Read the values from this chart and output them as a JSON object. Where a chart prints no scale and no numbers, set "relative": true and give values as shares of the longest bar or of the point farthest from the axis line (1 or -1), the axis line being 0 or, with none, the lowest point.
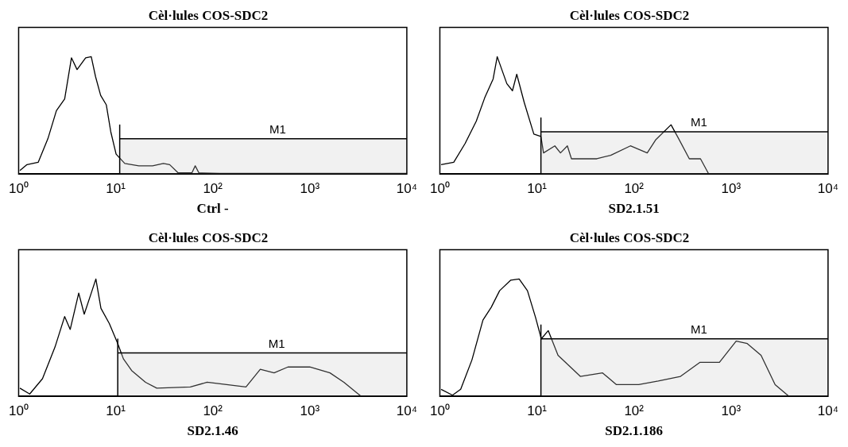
{
  "chart_data": [
    {
      "type": "line",
      "title": "Cèl·lules COS-SDC2",
      "xlabel": "Ctrl -",
      "ref_lines": [
        {
          "axis": "x",
          "value": 11
        },
        {
          "axis": "y",
          "value": 0.3
        }
      ],
      "log": "x",
      "relative": true,
      "marker": "none",
      "line_style": "solid",
      "xlim": [
        1,
        10000
      ],
      "xticks": [
        {
          "value": 1,
          "label": "10⁰"
        },
        {
          "value": 10,
          "label": "10¹"
        },
        {
          "value": 100,
          "label": "10²"
        },
        {
          "value": 1000,
          "label": "10³"
        },
        {
          "value": 10000,
          "label": "10⁴"
        }
      ],
      "bands": [
        {
          "axis": "x",
          "from": 11,
          "to": 10000,
          "label": "M1"
        }
      ],
      "x": [
        1.03,
        1.22,
        1.59,
        2.0,
        2.45,
        2.98,
        3.5,
        4.0,
        4.9,
        5.6,
        6.2,
        7.0,
        8.0,
        8.9,
        10.1,
        12.4,
        17.3,
        24,
        31,
        36,
        44,
        61,
        66,
        72,
        118,
        10000
      ],
      "series": [
        {
          "color": "#000000",
          "values": [
            0.03,
            0.08,
            0.1,
            0.3,
            0.54,
            0.64,
            0.99,
            0.89,
            0.99,
            1.0,
            0.83,
            0.67,
            0.59,
            0.36,
            0.17,
            0.09,
            0.07,
            0.07,
            0.09,
            0.08,
            0.01,
            0.01,
            0.07,
            0.01,
            0.005,
            0.005
          ]
        }
      ]
    },
    {
      "type": "line",
      "title": "Cèl·lules COS-SDC2",
      "xlabel": "SD2.1.51",
      "ref_lines": [
        {
          "axis": "x",
          "value": 11
        },
        {
          "axis": "y",
          "value": 0.36
        }
      ],
      "log": "x",
      "relative": true,
      "marker": "none",
      "line_style": "solid",
      "xlim": [
        1,
        10000
      ],
      "xticks": [
        {
          "value": 1,
          "label": "10⁰"
        },
        {
          "value": 10,
          "label": "10¹"
        },
        {
          "value": 100,
          "label": "10²"
        },
        {
          "value": 1000,
          "label": "10³"
        },
        {
          "value": 10000,
          "label": "10⁴"
        }
      ],
      "bands": [
        {
          "axis": "x",
          "from": 11,
          "to": 10000,
          "label": "M1"
        }
      ],
      "x": [
        1.03,
        1.39,
        1.82,
        2.37,
        2.9,
        3.54,
        3.9,
        4.9,
        5.6,
        6.2,
        7.4,
        9.3,
        11,
        11.7,
        15.3,
        17.5,
        20.6,
        22.7,
        41.4,
        57.6,
        91.9,
        137,
        167,
        241,
        285,
        372,
        485,
        590,
        10000
      ],
      "series": [
        {
          "color": "#000000",
          "values": [
            0.08,
            0.1,
            0.26,
            0.45,
            0.65,
            0.81,
            1.0,
            0.77,
            0.71,
            0.85,
            0.61,
            0.34,
            0.32,
            0.18,
            0.24,
            0.18,
            0.24,
            0.13,
            0.13,
            0.16,
            0.24,
            0.18,
            0.29,
            0.42,
            0.31,
            0.13,
            0.13,
            0,
            0
          ]
        }
      ]
    },
    {
      "type": "line",
      "title": "Cèl·lules COS-SDC2",
      "xlabel": "SD2.1.46",
      "ref_lines": [
        {
          "axis": "x",
          "value": 10.5
        },
        {
          "axis": "y",
          "value": 0.37
        }
      ],
      "log": "x",
      "relative": true,
      "marker": "none",
      "line_style": "solid",
      "xlim": [
        1,
        10000
      ],
      "xticks": [
        {
          "value": 1,
          "label": "10⁰"
        },
        {
          "value": 10,
          "label": "10¹"
        },
        {
          "value": 100,
          "label": "10²"
        },
        {
          "value": 1000,
          "label": "10³"
        },
        {
          "value": 10000,
          "label": "10⁴"
        }
      ],
      "bands": [
        {
          "axis": "x",
          "from": 10.5,
          "to": 10000,
          "label": "M1"
        }
      ],
      "x": [
        1.03,
        1.3,
        1.76,
        2.37,
        2.98,
        3.4,
        4.16,
        4.74,
        5.6,
        6.25,
        7.05,
        8.6,
        10.5,
        12.0,
        14.6,
        20.3,
        26.5,
        58.8,
        87.6,
        220,
        309,
        429,
        595,
        1000,
        1614,
        2248,
        3050,
        3390,
        10000
      ],
      "series": [
        {
          "color": "#000000",
          "values": [
            0.07,
            0.02,
            0.15,
            0.42,
            0.68,
            0.57,
            0.88,
            0.7,
            0.88,
            1.0,
            0.75,
            0.62,
            0.45,
            0.32,
            0.22,
            0.12,
            0.07,
            0.08,
            0.12,
            0.08,
            0.23,
            0.2,
            0.25,
            0.25,
            0.2,
            0.12,
            0.03,
            0,
            0
          ]
        }
      ]
    },
    {
      "type": "line",
      "title": "Cèl·lules COS-SDC2",
      "xlabel": "SD2.1.186",
      "ref_lines": [
        {
          "axis": "x",
          "value": 11
        },
        {
          "axis": "y",
          "value": 0.49
        }
      ],
      "log": "x",
      "relative": true,
      "marker": "none",
      "line_style": "solid",
      "xlim": [
        1,
        10000
      ],
      "xticks": [
        {
          "value": 1,
          "label": "10⁰"
        },
        {
          "value": 10,
          "label": "10¹"
        },
        {
          "value": 100,
          "label": "10²"
        },
        {
          "value": 1000,
          "label": "10³"
        },
        {
          "value": 10000,
          "label": "10⁴"
        }
      ],
      "bands": [
        {
          "axis": "x",
          "from": 11,
          "to": 10000,
          "label": "M1"
        }
      ],
      "x": [
        1.03,
        1.35,
        1.64,
        2.14,
        2.78,
        3.39,
        4.13,
        5.38,
        6.56,
        7.99,
        9.7,
        11.1,
        13.1,
        16.5,
        21.5,
        28,
        47.5,
        66,
        112,
        178,
        302,
        480,
        760,
        1130,
        1470,
        2040,
        2850,
        3960,
        10000
      ],
      "series": [
        {
          "color": "#000000",
          "values": [
            0.06,
            0.01,
            0.06,
            0.31,
            0.65,
            0.76,
            0.9,
            0.99,
            1.0,
            0.9,
            0.67,
            0.49,
            0.56,
            0.35,
            0.26,
            0.17,
            0.2,
            0.1,
            0.1,
            0.13,
            0.17,
            0.29,
            0.29,
            0.47,
            0.45,
            0.35,
            0.1,
            0,
            0
          ]
        }
      ]
    }
  ]
}
